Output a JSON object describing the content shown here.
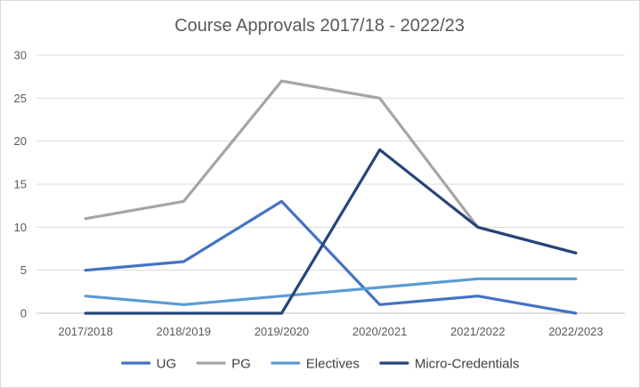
{
  "chart_data": {
    "type": "line",
    "title": "Course Approvals 2017/18 - 2022/23",
    "categories": [
      "2017/2018",
      "2018/2019",
      "2019/2020",
      "2020/2021",
      "2021/2022",
      "2022/2023"
    ],
    "ylim": [
      0,
      30
    ],
    "yticks": [
      0,
      5,
      10,
      15,
      20,
      25,
      30
    ],
    "grid": true,
    "legend_position": "bottom",
    "xlabel": "",
    "ylabel": "",
    "series": [
      {
        "name": "UG",
        "color": "#4472c4",
        "values": [
          5,
          6,
          13,
          1,
          2,
          0
        ]
      },
      {
        "name": "PG",
        "color": "#a5a5a5",
        "values": [
          11,
          13,
          27,
          25,
          10,
          7
        ]
      },
      {
        "name": "Electives",
        "color": "#5b9bd5",
        "values": [
          2,
          1,
          2,
          3,
          4,
          4
        ]
      },
      {
        "name": "Micro-Credentials",
        "color": "#264478",
        "values": [
          0,
          0,
          0,
          19,
          10,
          7
        ]
      }
    ]
  }
}
